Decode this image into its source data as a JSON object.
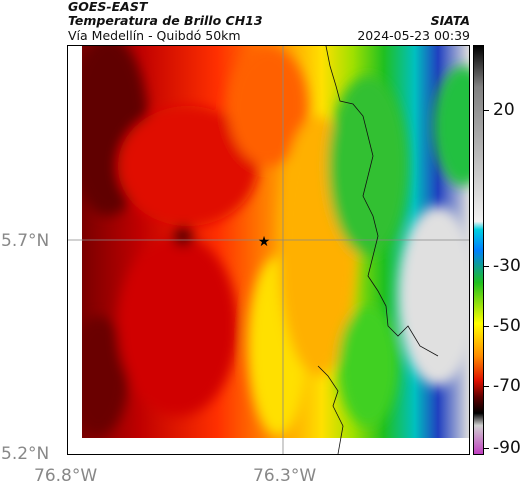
{
  "header": {
    "satellite": "GOES-EAST",
    "product": "Temperatura de Brillo CH13",
    "agency": "SIATA",
    "subtitle": "Vía Medellín - Quibdó 50km",
    "timestamp": "2024-05-23 00:39"
  },
  "map": {
    "lat_labels": [
      "5.7°N",
      "5.2°N"
    ],
    "lon_labels": [
      "76.8°W",
      "76.3°W"
    ],
    "marker": "star-marker"
  },
  "colorbar": {
    "tick_labels": [
      "20",
      "-30",
      "-50",
      "-70",
      "-90"
    ],
    "colors": {
      "warm": "#f2f2f2",
      "cyan": "#00d0e0",
      "green": "#20c020",
      "yellow": "#ffff00",
      "orange": "#ff8c00",
      "red": "#e01000",
      "darkred": "#600000",
      "black": "#000000",
      "magenta": "#c040c0"
    }
  }
}
